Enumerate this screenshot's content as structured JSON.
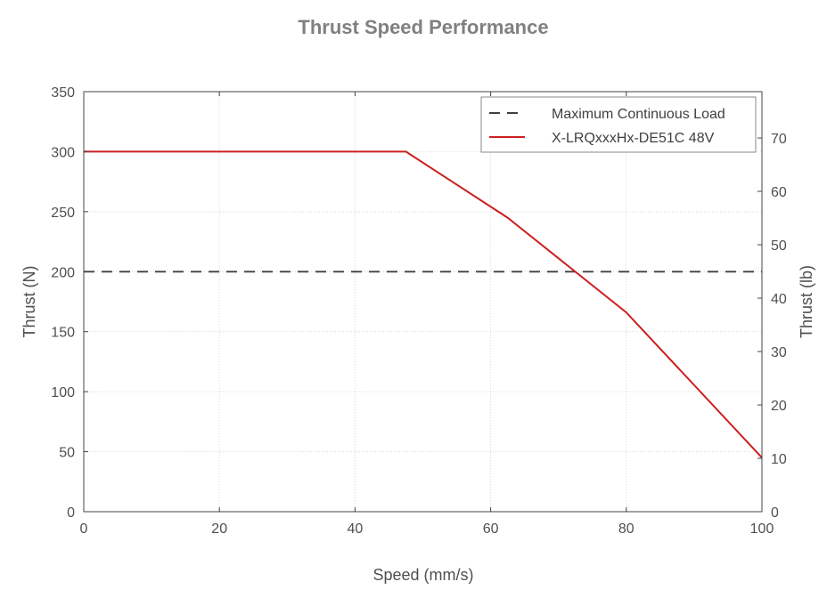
{
  "chart_data": {
    "type": "line",
    "title": "Thrust Speed Performance",
    "xlabel": "Speed (mm/s)",
    "ylabel": "Thrust (N)",
    "y2label": "Thrust (lb)",
    "xlim": [
      0,
      100
    ],
    "ylim": [
      0,
      350
    ],
    "y2lim": [
      0,
      78.68
    ],
    "xticks": [
      0,
      20,
      40,
      60,
      80,
      100
    ],
    "yticks": [
      0,
      50,
      100,
      150,
      200,
      250,
      300,
      350
    ],
    "y2ticks": [
      0,
      10,
      20,
      30,
      40,
      50,
      60,
      70
    ],
    "grid": true,
    "legend_position": "top-right",
    "series": [
      {
        "name": "Maximum Continuous Load",
        "style": "dashed",
        "color": "#404040",
        "x": [
          0,
          100
        ],
        "y": [
          200,
          200
        ]
      },
      {
        "name": "X-LRQxxxHx-DE51C 48V",
        "style": "solid",
        "color": "#cc1f1f",
        "x": [
          0,
          47.5,
          62.5,
          80,
          100
        ],
        "y": [
          300,
          300,
          245,
          166,
          45
        ]
      }
    ]
  }
}
